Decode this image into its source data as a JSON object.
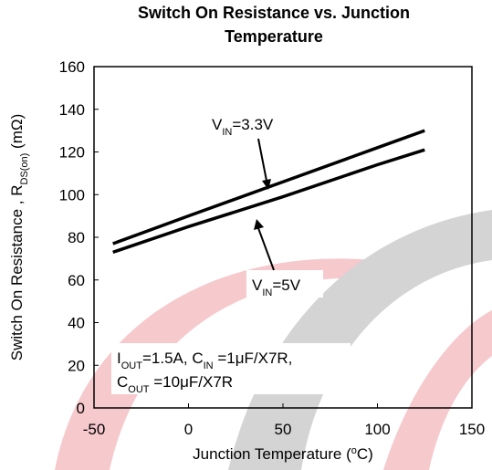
{
  "chart_data": {
    "type": "line",
    "title": [
      "Switch On Resistance vs. Junction",
      "Temperature"
    ],
    "x_label": [
      {
        "text": "Junction Temperature ("
      },
      {
        "text": "o",
        "sup": true
      },
      {
        "text": "C)"
      }
    ],
    "y_label": [
      {
        "text": "Switch On Resistance , R"
      },
      {
        "text": "DS(on)",
        "sub": true
      },
      {
        "text": " (mΩ)"
      }
    ],
    "x": [
      -40,
      0,
      50,
      100,
      125
    ],
    "series": [
      {
        "name": [
          {
            "text": "V"
          },
          {
            "text": "IN",
            "sub": true
          },
          {
            "text": "=3.3V"
          }
        ],
        "color": "#000000",
        "values": [
          77,
          90,
          106,
          122,
          130
        ]
      },
      {
        "name": [
          {
            "text": "V"
          },
          {
            "text": "IN",
            "sub": true
          },
          {
            "text": "=5V"
          }
        ],
        "color": "#000000",
        "values": [
          73,
          85,
          99,
          114,
          121
        ]
      }
    ],
    "note": [
      [
        {
          "text": "I"
        },
        {
          "text": "OUT",
          "sub": true
        },
        {
          "text": "=1.5A, C"
        },
        {
          "text": "IN",
          "sub": true
        },
        {
          "text": " =1μF/X7R,"
        }
      ],
      [
        {
          "text": "C"
        },
        {
          "text": "OUT",
          "sub": true
        },
        {
          "text": " =10μF/X7R"
        }
      ]
    ],
    "xlim": [
      -50,
      150
    ],
    "xticks": [
      -50,
      0,
      50,
      100,
      150
    ],
    "ylim": [
      0,
      160
    ],
    "yticks": [
      0,
      20,
      40,
      60,
      80,
      100,
      120,
      140,
      160
    ],
    "grid": false
  }
}
